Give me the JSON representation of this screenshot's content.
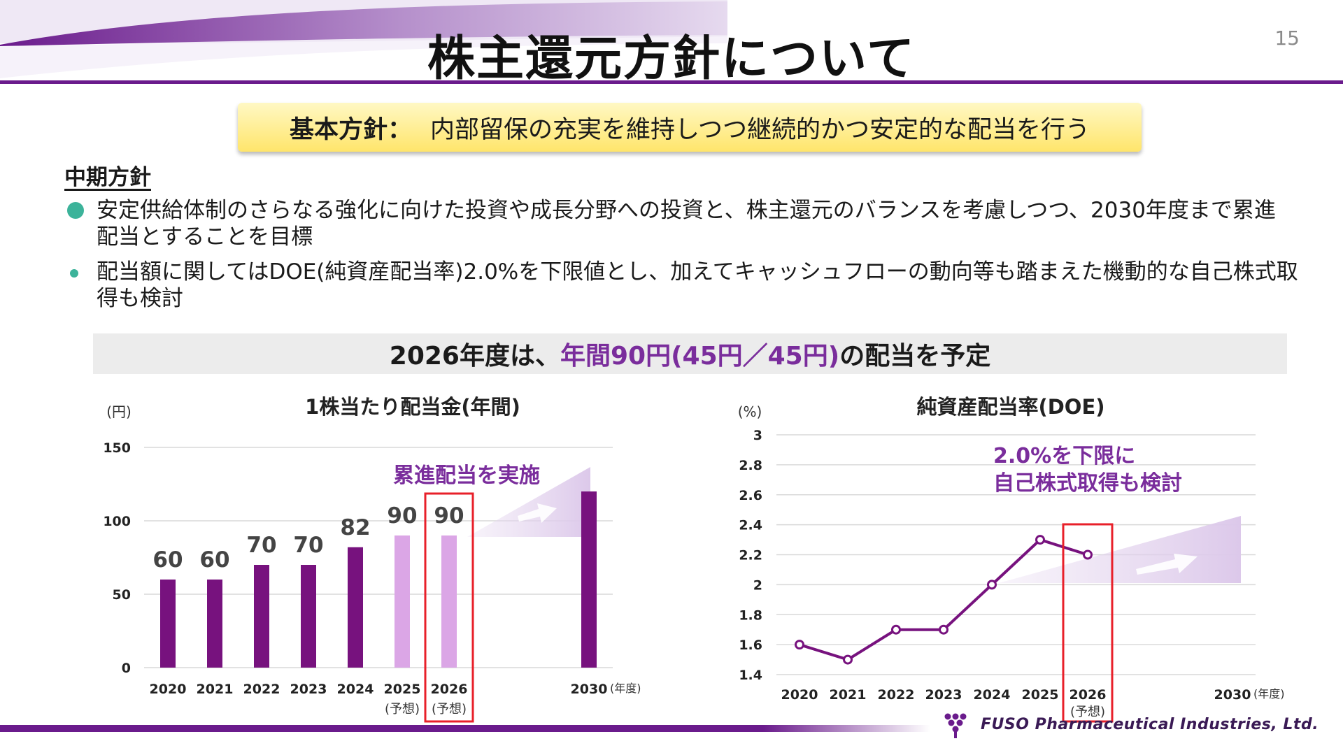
{
  "page": {
    "title": "株主還元方針について",
    "page_number": "15",
    "policy_label": "基本方針：",
    "policy_text": "内部留保の充実を維持しつつ継続的かつ安定的な配当を行う",
    "midterm_heading": "中期方針",
    "bullets": [
      {
        "line1": "安定供給体制のさらなる強化に向けた投資や成長分野への投資と、株主還元のバランスを考慮しつつ、2030年度まで累進",
        "line2": "配当とすることを目標"
      },
      {
        "line1": "配当額に関してはDOE(純資産配当率)2.0%を下限値とし、加えてキャッシュフローの動向等も踏まえた機動的な自己株式取",
        "line2": "得も検討"
      }
    ],
    "highlight_prefix": "2026年度は、",
    "highlight_accent": "年間90円(45円／45円)",
    "highlight_suffix": "の配当を予定",
    "logo_text": "FUSO Pharmaceutical Industries, Ltd."
  },
  "colors": {
    "accent": "#7a2d9c",
    "bar_actual": "#77127e",
    "bar_forecast": "#dba6e6",
    "line": "#77127e",
    "highlight_box": "#e8202a",
    "policy_box": "#ffe56b",
    "bullet": "#3cb39a"
  },
  "chart_data": [
    {
      "type": "bar",
      "title": "1株当たり配当金(年間)",
      "unit_label": "(円)",
      "x_unit_label": "(年度)",
      "categories": [
        "2020",
        "2021",
        "2022",
        "2023",
        "2024",
        "2025",
        "2026",
        "2030"
      ],
      "category_sublabels": [
        "",
        "",
        "",
        "",
        "",
        "(予想)",
        "(予想)",
        ""
      ],
      "values": [
        60,
        60,
        70,
        70,
        82,
        90,
        90,
        120
      ],
      "value_labels": [
        "60",
        "60",
        "70",
        "70",
        "82",
        "90",
        "90",
        ""
      ],
      "forecast": [
        false,
        false,
        false,
        false,
        false,
        true,
        true,
        false
      ],
      "ylim": [
        0,
        150
      ],
      "yticks": [
        "150",
        "100",
        "50",
        "0"
      ],
      "annotation": "累進配当を実施",
      "highlight_category": "2026",
      "grid": true
    },
    {
      "type": "line",
      "title": "純資産配当率(DOE)",
      "unit_label": "(%)",
      "x_unit_label": "(年度)",
      "categories": [
        "2020",
        "2021",
        "2022",
        "2023",
        "2024",
        "2025",
        "2026",
        "2030"
      ],
      "category_sublabels": [
        "",
        "",
        "",
        "",
        "",
        "",
        "(予想)",
        ""
      ],
      "values": [
        1.6,
        1.5,
        1.7,
        1.7,
        2.0,
        2.3,
        2.2,
        null
      ],
      "ylim": [
        1.4,
        3.0
      ],
      "yticks": [
        "3",
        "2.8",
        "2.6",
        "2.4",
        "2.2",
        "2",
        "1.8",
        "1.6",
        "1.4"
      ],
      "annotation_lines": [
        "2.0%を下限に",
        "自己株式取得も検討"
      ],
      "highlight_category": "2026",
      "grid": true
    }
  ]
}
